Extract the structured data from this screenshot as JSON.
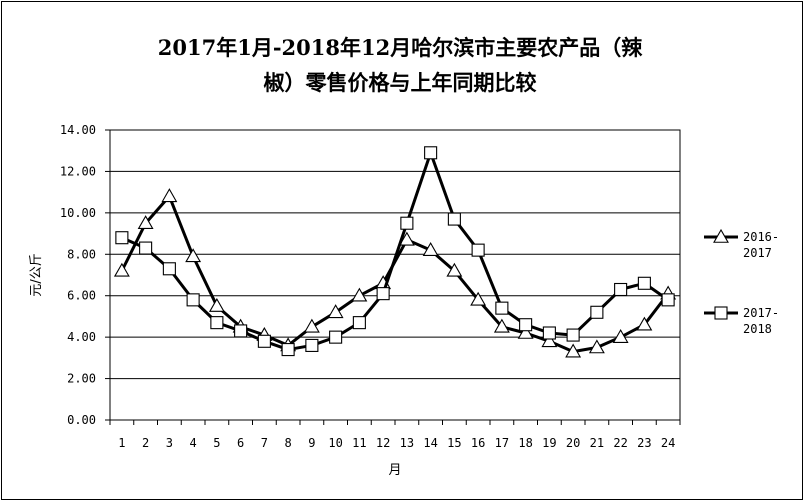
{
  "chart_data": {
    "type": "line",
    "title": "2017年1月-2018年12月哈尔滨市主要农产品（辣椒）零售价格与上年同期比较",
    "title_lines": [
      "2017年1月-2018年12月哈尔滨市主要农产品（辣",
      "椒）零售价格与上年同期比较"
    ],
    "xlabel": "月",
    "ylabel": "元/公斤",
    "ylim": [
      0,
      14
    ],
    "yticks": [
      "0.00",
      "2.00",
      "4.00",
      "6.00",
      "8.00",
      "10.00",
      "12.00",
      "14.00"
    ],
    "x": [
      1,
      2,
      3,
      4,
      5,
      6,
      7,
      8,
      9,
      10,
      11,
      12,
      13,
      14,
      15,
      16,
      17,
      18,
      19,
      20,
      21,
      22,
      23,
      24
    ],
    "grid": true,
    "legend_position": "right",
    "series": [
      {
        "name_lines": [
          "2016-",
          "2017"
        ],
        "marker": "triangle",
        "values": [
          7.2,
          9.5,
          10.8,
          7.9,
          5.5,
          4.5,
          4.1,
          3.6,
          4.5,
          5.2,
          6.0,
          6.6,
          8.7,
          8.2,
          7.2,
          5.8,
          4.5,
          4.2,
          3.8,
          3.3,
          3.5,
          4.0,
          4.6,
          6.1
        ]
      },
      {
        "name_lines": [
          "2017-",
          "2018"
        ],
        "marker": "square",
        "values": [
          8.8,
          8.3,
          7.3,
          5.8,
          4.7,
          4.3,
          3.8,
          3.4,
          3.6,
          4.0,
          4.7,
          6.1,
          9.5,
          12.9,
          9.7,
          8.2,
          5.4,
          4.6,
          4.2,
          4.1,
          5.2,
          6.3,
          6.6,
          5.8
        ]
      }
    ]
  }
}
